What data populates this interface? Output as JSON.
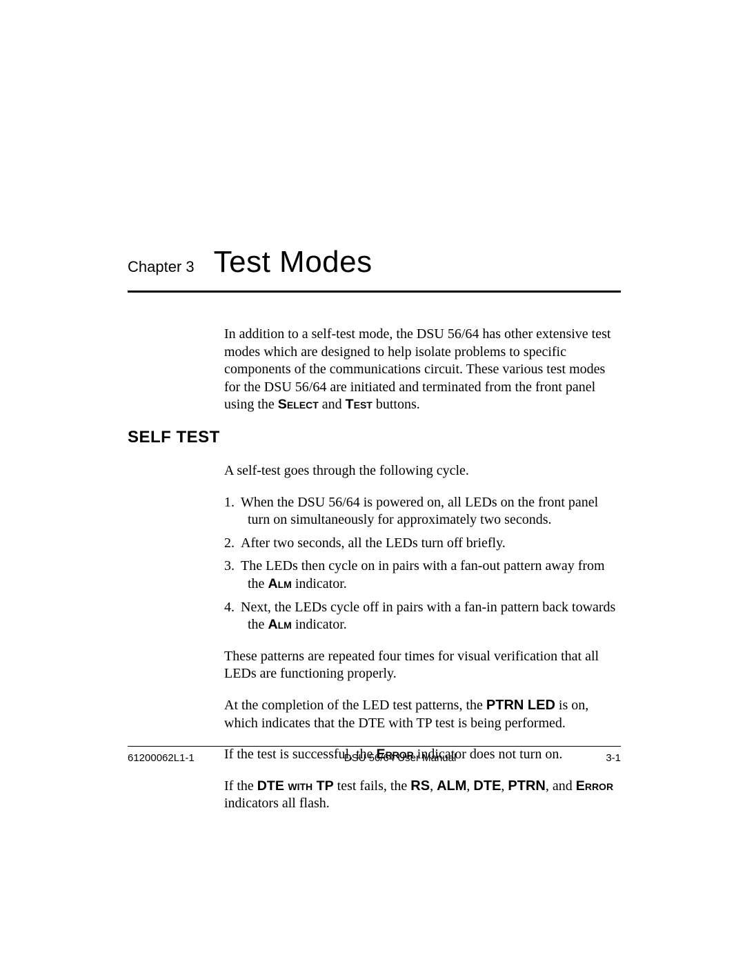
{
  "chapter": {
    "label": "Chapter 3",
    "title": "Test Modes"
  },
  "intro": {
    "text_pre": "In addition to a self-test mode, the DSU 56/64 has other extensive test modes which are designed to help isolate problems to specific components of the communications circuit. These various test modes for the DSU 56/64 are initiated and terminated from the front panel using the ",
    "btn_select": "Select",
    "and": " and ",
    "btn_test": "Test",
    "text_post": " buttons."
  },
  "section": {
    "heading": "SELF TEST"
  },
  "p_cycle": "A self-test goes through the following cycle.",
  "steps": {
    "s1": {
      "num": "1.",
      "text": "When the DSU 56/64 is powered on, all LEDs on the front panel turn on simultaneously for approximately two seconds."
    },
    "s2": {
      "num": "2.",
      "text": "After two seconds, all the LEDs turn off briefly."
    },
    "s3": {
      "num": "3.",
      "pre": "The LEDs then cycle on in pairs with a fan-out pattern away from the ",
      "alm": "Alm",
      "post": " indicator."
    },
    "s4": {
      "num": "4.",
      "pre": "Next, the LEDs cycle off in pairs with a fan-in pattern back towards the ",
      "alm": "Alm",
      "post": " indicator."
    }
  },
  "p_repeat": "These patterns are repeated four times for visual verification that all LEDs are functioning properly.",
  "p_ptrn": {
    "pre": "At the completion of the LED test patterns, the ",
    "led": "PTRN LED",
    "post": " is on, which indicates that the DTE with TP test is being performed."
  },
  "p_success": {
    "pre": "If the test is successful, the ",
    "err": "Error",
    "post": " indicator does not turn on."
  },
  "p_fail": {
    "pre": "If the ",
    "dtetp": "DTE with TP",
    "mid1": " test fails, the ",
    "rs": "RS",
    "c1": ", ",
    "alm": "ALM",
    "c2": ", ",
    "dte": "DTE",
    "c3": ", ",
    "ptrn": "PTRN",
    "c4": ", and ",
    "err": "Error",
    "post": " indicators all flash."
  },
  "footer": {
    "left": "61200062L1-1",
    "center": "DSU 56/64 User Manual",
    "right": "3-1"
  }
}
